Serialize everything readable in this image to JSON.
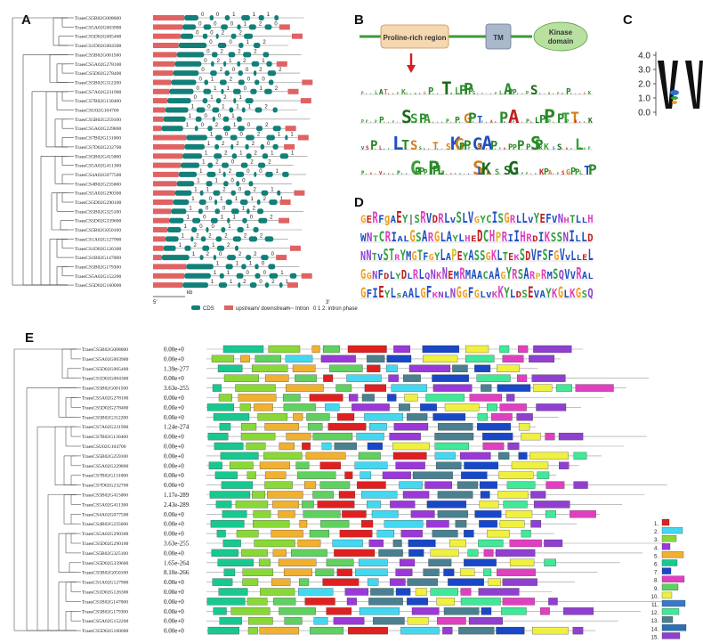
{
  "panels": {
    "a": "A",
    "b": "B",
    "c": "C",
    "d": "D",
    "e": "E"
  },
  "colors": {
    "cds": "#128078",
    "utr": "#e06262",
    "intron": "#888888",
    "tree": "#444444",
    "tm": "#aab8cc",
    "kinase": "#b8e0a0",
    "prolineRegion": "#f6d8b0",
    "arrow": "#d42020",
    "membrane": "#3a9a3a"
  },
  "genesA": [
    "TraesCS5B02G008600",
    "TraesCS5A02G003900",
    "TraesCS5D02G005400",
    "TraesCS1D02G004300",
    "TraesCS5B02G001500",
    "TraesCS5A02G278100",
    "TraesCS5D02G278400",
    "TraesCS5B02G312200",
    "TraesCS7A02G231900",
    "TraesCS7B02G130400",
    "TraesCSU02G104700",
    "TraesCS5B02G259100",
    "TraesCS5A02G229800",
    "TraesCS7B02G131000",
    "TraesCS7D02G232700",
    "TraesCS5B02G415000",
    "TraesCS5A02G411300",
    "TraesCS4A02G077500",
    "TraesCS4B02G235600",
    "TraesCS5A02G290300",
    "TraesCS5D02G290100",
    "TraesCS5B02G325100",
    "TraesCS5D02G339600",
    "TraesCS5B02G050100",
    "TraesCS1A02G127900",
    "TraesCS1D02G126300",
    "TraesCS1B02G147000",
    "TraesCS5B02G179300",
    "TraesCS5A02G152200",
    "TraesCS5D02G160000"
  ],
  "legendA": {
    "kb": "kb",
    "cds": "CDS",
    "utr": "upstream/ downstream",
    "intron": "Intron",
    "phase": "0 1 2: intron phase",
    "five": "5'",
    "three": "3'"
  },
  "panelB": {
    "proline": "Proline-rich region",
    "tm": "TM",
    "kinase": "Kinase domain"
  },
  "panelC": {
    "ticks": [
      "4.0",
      "3.0",
      "2.0",
      "1.0",
      "0.0"
    ],
    "ylim": [
      0,
      4
    ]
  },
  "panelD": {
    "rows": [
      "GERFgAEY|SRVDRLVSLVGYCISGRLLVYEFVNHTLLH",
      "WNTCRIALGSARGLAYLHEDCHPRIIHRDIKSSNILLD",
      "NNTVSTRYMGTFGYLAPEYASSGKLTEKSDVFSFGVVLLEL",
      "GGNFDLYDLRLQNKNEMRMAACAAGYRSARPRMSQVVRAL",
      "GFIEYLsAALGFKNLNGGFGLVKKYLDSEVAYKGLKGSQ"
    ]
  },
  "genesE": [
    {
      "gene": "TraesCS5B02G008600",
      "e": "0.00e+0"
    },
    {
      "gene": "TraesCS5A02G003900",
      "e": "0.00e+0"
    },
    {
      "gene": "TraesCS5D02G005400",
      "e": "1.39e-277"
    },
    {
      "gene": "TraesCS1D02G004300",
      "e": "0.00e+0"
    },
    {
      "gene": "TraesCS5B02G001500",
      "e": "3.63e-255"
    },
    {
      "gene": "TraesCS5A02G278100",
      "e": "0.00e+0"
    },
    {
      "gene": "TraesCS5D02G278400",
      "e": "0.00e+0"
    },
    {
      "gene": "TraesCS5B02G312200",
      "e": "0.00e+0"
    },
    {
      "gene": "TraesCS7A02G231900",
      "e": "1.24e-274"
    },
    {
      "gene": "TraesCS7B02G130400",
      "e": "0.00e+0"
    },
    {
      "gene": "TraesCSU02G104700",
      "e": "0.00e+0"
    },
    {
      "gene": "TraesCS5B02G259100",
      "e": "0.00e+0"
    },
    {
      "gene": "TraesCS5A02G229800",
      "e": "0.00e+0"
    },
    {
      "gene": "TraesCS7B02G131000",
      "e": "0.00e+0"
    },
    {
      "gene": "TraesCS7D02G232700",
      "e": "0.00e+0"
    },
    {
      "gene": "TraesCS5B02G415000",
      "e": "1.17e-289"
    },
    {
      "gene": "TraesCS5A02G411300",
      "e": "2.43e-289"
    },
    {
      "gene": "TraesCS4A02G077500",
      "e": "0.00e+0"
    },
    {
      "gene": "TraesCS4B02G235600",
      "e": "0.00e+0"
    },
    {
      "gene": "TraesCS5A02G290300",
      "e": "0.00e+0"
    },
    {
      "gene": "TraesCS5D02G290100",
      "e": "3.63e-255"
    },
    {
      "gene": "TraesCS5B02G325100",
      "e": "0.00e+0"
    },
    {
      "gene": "TraesCS5D02G339600",
      "e": "1.65e-264"
    },
    {
      "gene": "TraesCS5B02G050100",
      "e": "8.10e-266"
    },
    {
      "gene": "TraesCS1A02G127900",
      "e": "0.00e+0"
    },
    {
      "gene": "TraesCS1D02G126300",
      "e": "0.00e+0"
    },
    {
      "gene": "TraesCS1B02G147000",
      "e": "0.00e+0"
    },
    {
      "gene": "TraesCS5B02G179300",
      "e": "0.00e+0"
    },
    {
      "gene": "TraesCS5A02G152200",
      "e": "0.00e+0"
    },
    {
      "gene": "TraesCS5D02G160000",
      "e": "0.00e+0"
    }
  ],
  "motifLegend": {
    "labels": [
      "1.",
      "2.",
      "3.",
      "4.",
      "5.",
      "6.",
      "7.",
      "8.",
      "9.",
      "10.",
      "11.",
      "12.",
      "13.",
      "14.",
      "15."
    ],
    "colors": [
      "#e02020",
      "#44d8f0",
      "#8ad838",
      "#9a38d8",
      "#f0b030",
      "#18c890",
      "#1848c8",
      "#e040c0",
      "#60d060",
      "#f0f040",
      "#3878c8",
      "#40e898",
      "#4a8090",
      "#2870b8",
      "#9040d0"
    ]
  }
}
